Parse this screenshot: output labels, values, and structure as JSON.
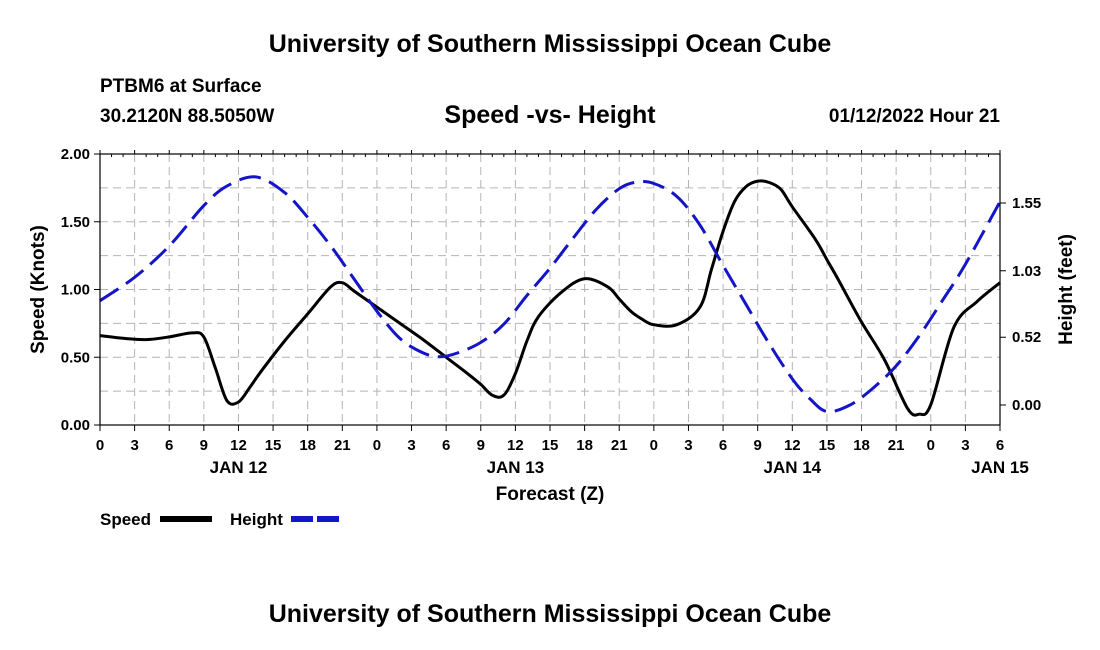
{
  "header": {
    "title": "University of Southern Mississippi Ocean Cube",
    "station": "PTBM6 at Surface",
    "coords": "30.2120N  88.5050W",
    "subtitle": "Speed -vs- Height",
    "datetime": "01/12/2022 Hour 21"
  },
  "footer": {
    "title": "University of Southern Mississippi Ocean Cube"
  },
  "chart_data": {
    "type": "line",
    "title": "Speed -vs- Height",
    "xlabel": "Forecast (Z)",
    "ylabel_left": "Speed (Knots)",
    "ylabel_right": "Height (feet)",
    "x_unit": "hours since JAN 12 00Z",
    "xlim": [
      0,
      78
    ],
    "ylim_left": [
      0,
      2.0
    ],
    "ylim_right_tick_values": [
      0.0,
      0.52,
      1.03,
      1.55
    ],
    "x_tick_labels": [
      "0",
      "3",
      "6",
      "9",
      "12",
      "15",
      "18",
      "21",
      "0",
      "3",
      "6",
      "9",
      "12",
      "15",
      "18",
      "21",
      "0",
      "3",
      "6",
      "9",
      "12",
      "15",
      "18",
      "21",
      "0",
      "3",
      "6"
    ],
    "y_left_tick_labels": [
      "0.00",
      "0.50",
      "1.00",
      "1.50",
      "2.00"
    ],
    "y_right_tick_labels": [
      "0.00",
      "0.52",
      "1.03",
      "1.55"
    ],
    "day_labels": [
      {
        "hour": 12,
        "label": "JAN 12"
      },
      {
        "hour": 36,
        "label": "JAN 13"
      },
      {
        "hour": 60,
        "label": "JAN 14"
      },
      {
        "hour": 78,
        "label": "JAN 15"
      }
    ],
    "grid": true,
    "legend": [
      {
        "name": "Speed",
        "color": "#000000",
        "style": "solid"
      },
      {
        "name": "Height",
        "color": "#1414c8",
        "style": "dashed"
      }
    ],
    "series": [
      {
        "name": "Speed",
        "axis": "left",
        "color": "#000000",
        "x": [
          0,
          2,
          4,
          6,
          8,
          9,
          10,
          11,
          12,
          13,
          14,
          16,
          18,
          20,
          21,
          22,
          24,
          26,
          28,
          30,
          32,
          33,
          34,
          35,
          36,
          37,
          38,
          40,
          42,
          44,
          45,
          46,
          47,
          48,
          50,
          52,
          53,
          54,
          55,
          56,
          57,
          58,
          59,
          60,
          62,
          63,
          64,
          66,
          68,
          70,
          71,
          72,
          74,
          76,
          78
        ],
        "values": [
          0.66,
          0.64,
          0.63,
          0.65,
          0.68,
          0.65,
          0.42,
          0.18,
          0.17,
          0.28,
          0.4,
          0.62,
          0.82,
          1.02,
          1.05,
          0.99,
          0.87,
          0.75,
          0.63,
          0.5,
          0.37,
          0.3,
          0.22,
          0.22,
          0.38,
          0.62,
          0.8,
          0.98,
          1.08,
          1.02,
          0.93,
          0.84,
          0.78,
          0.74,
          0.74,
          0.87,
          1.15,
          1.43,
          1.65,
          1.76,
          1.8,
          1.79,
          1.74,
          1.61,
          1.37,
          1.22,
          1.07,
          0.76,
          0.48,
          0.12,
          0.08,
          0.15,
          0.72,
          0.91,
          1.05
        ]
      },
      {
        "name": "Height",
        "axis": "right",
        "color": "#1414c8",
        "x": [
          0,
          3,
          6,
          9,
          11,
          13.5,
          16,
          18,
          20,
          22,
          24,
          26,
          28,
          29.5,
          31,
          33,
          35,
          37,
          39,
          41,
          43,
          45,
          46.5,
          48,
          50,
          52,
          54,
          56,
          58,
          60,
          61.5,
          63,
          65,
          67,
          69,
          71,
          73,
          75,
          78
        ],
        "values": [
          0.8,
          0.98,
          1.22,
          1.53,
          1.68,
          1.75,
          1.63,
          1.44,
          1.22,
          0.97,
          0.72,
          0.51,
          0.4,
          0.37,
          0.4,
          0.48,
          0.62,
          0.84,
          1.05,
          1.28,
          1.5,
          1.66,
          1.71,
          1.7,
          1.6,
          1.38,
          1.07,
          0.77,
          0.47,
          0.2,
          0.05,
          -0.05,
          0.0,
          0.13,
          0.3,
          0.53,
          0.8,
          1.08,
          1.56
        ]
      }
    ]
  }
}
